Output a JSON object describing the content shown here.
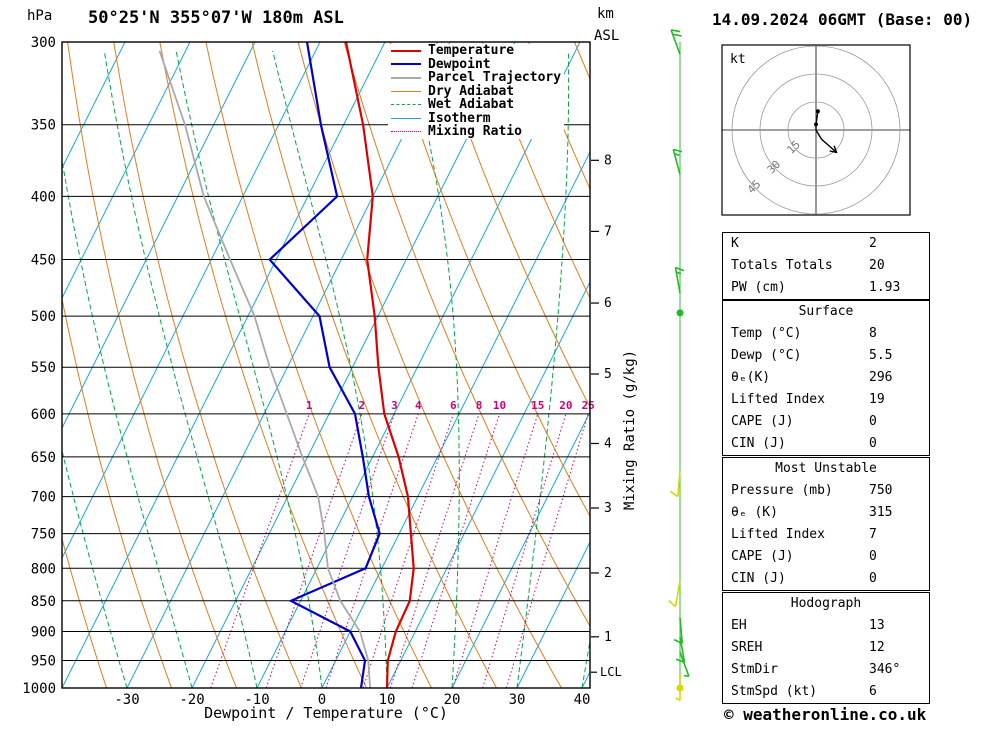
{
  "header": {
    "pressure_unit": "hPa",
    "station": "50°25'N 355°07'W 180m ASL",
    "altitude_unit_line1": "km",
    "altitude_unit_line2": "ASL",
    "datetime": "14.09.2024 06GMT (Base: 00)"
  },
  "legend": {
    "items": [
      {
        "label": "Temperature",
        "color": "#dd0000",
        "dash": "solid",
        "width": 2
      },
      {
        "label": "Dewpoint",
        "color": "#0000cc",
        "dash": "solid",
        "width": 2
      },
      {
        "label": "Parcel Trajectory",
        "color": "#aaaaaa",
        "dash": "solid",
        "width": 2
      },
      {
        "label": "Dry Adiabat",
        "color": "#e07d1e",
        "dash": "solid",
        "width": 1
      },
      {
        "label": "Wet Adiabat",
        "color": "#00a844",
        "dash": "dashed",
        "width": 1
      },
      {
        "label": "Isotherm",
        "color": "#18a8d8",
        "dash": "solid",
        "width": 1
      },
      {
        "label": "Mixing Ratio",
        "color": "#cc0080",
        "dash": "dotted",
        "width": 1
      }
    ]
  },
  "axes": {
    "pressure_ticks": [
      300,
      350,
      400,
      450,
      500,
      550,
      600,
      650,
      700,
      750,
      800,
      850,
      900,
      950,
      1000
    ],
    "temp_ticks": [
      -30,
      -20,
      -10,
      0,
      10,
      20,
      30,
      40
    ],
    "xlabel": "Dewpoint / Temperature (°C)",
    "mixing_ratio_axis_label": "Mixing Ratio (g/kg)",
    "km_ticks": [
      {
        "km": 8,
        "p": 374
      },
      {
        "km": 7,
        "p": 427
      },
      {
        "km": 6,
        "p": 488
      },
      {
        "km": 5,
        "p": 557
      },
      {
        "km": 4,
        "p": 634
      },
      {
        "km": 3,
        "p": 715
      },
      {
        "km": 2,
        "p": 807
      },
      {
        "km": 1,
        "p": 909
      }
    ],
    "lcl": {
      "label": "LCL",
      "p": 971
    }
  },
  "chart_data": {
    "type": "line",
    "title": "Skew-T log-P sounding 50°25'N 355°07'W 180m ASL 14.09.2024 06GMT",
    "pressure_range": [
      300,
      1000
    ],
    "surface_temp_axis_range": [
      -40,
      40
    ],
    "mixing_ratio_lines": [
      1,
      2,
      3,
      4,
      6,
      8,
      10,
      15,
      20,
      25
    ],
    "series": [
      {
        "name": "Temperature",
        "color": "#dd0000",
        "points": [
          [
            300,
            -46
          ],
          [
            350,
            -37
          ],
          [
            400,
            -30
          ],
          [
            450,
            -26
          ],
          [
            500,
            -20.5
          ],
          [
            550,
            -16
          ],
          [
            600,
            -11.5
          ],
          [
            650,
            -6
          ],
          [
            700,
            -1.5
          ],
          [
            750,
            1.8
          ],
          [
            800,
            4.9
          ],
          [
            850,
            6.8
          ],
          [
            900,
            7
          ],
          [
            950,
            8
          ],
          [
            1000,
            10
          ]
        ]
      },
      {
        "name": "Dewpoint",
        "color": "#0000cc",
        "points": [
          [
            300,
            -52
          ],
          [
            350,
            -43.5
          ],
          [
            400,
            -35.5
          ],
          [
            450,
            -41
          ],
          [
            500,
            -29
          ],
          [
            550,
            -23.5
          ],
          [
            600,
            -16
          ],
          [
            650,
            -11.5
          ],
          [
            700,
            -7.5
          ],
          [
            750,
            -3
          ],
          [
            800,
            -2.5
          ],
          [
            850,
            -11.5
          ],
          [
            900,
            0
          ],
          [
            950,
            4.5
          ],
          [
            1000,
            6
          ]
        ]
      },
      {
        "name": "Parcel Trajectory",
        "color": "#aaaaaa",
        "points": [
          [
            305,
            -74
          ],
          [
            350,
            -64.4
          ],
          [
            400,
            -56
          ],
          [
            450,
            -47.1
          ],
          [
            500,
            -39
          ],
          [
            550,
            -32.7
          ],
          [
            600,
            -26.5
          ],
          [
            650,
            -20.8
          ],
          [
            700,
            -15.3
          ],
          [
            750,
            -11.5
          ],
          [
            800,
            -8.3
          ],
          [
            850,
            -3.9
          ],
          [
            900,
            1.5
          ],
          [
            950,
            5
          ],
          [
            1000,
            7.4
          ]
        ]
      }
    ],
    "wind_barbs": [
      {
        "p": 307,
        "color": "#22bb22",
        "dir": 340,
        "speed": 20
      },
      {
        "p": 384,
        "color": "#22bb22",
        "dir": 345,
        "speed": 15
      },
      {
        "p": 479,
        "color": "#22bb22",
        "dir": 350,
        "speed": 15
      },
      {
        "p": 667,
        "color": "#d8d800",
        "dir": 185,
        "speed": 10
      },
      {
        "p": 819,
        "color": "#d8d800",
        "dir": 190,
        "speed": 10
      },
      {
        "p": 877,
        "color": "#22bb22",
        "dir": 175,
        "speed": 10
      },
      {
        "p": 909,
        "color": "#22bb22",
        "dir": 170,
        "speed": 10
      },
      {
        "p": 935,
        "color": "#22bb22",
        "dir": 160,
        "speed": 5
      },
      {
        "p": 975,
        "color": "#d8d800",
        "dir": 180,
        "speed": 5
      }
    ],
    "station_dots": [
      {
        "p": 497,
        "color": "#22bb22"
      },
      {
        "p": 1000,
        "color": "#d8d800"
      }
    ]
  },
  "hodograph": {
    "unit_label": "kt",
    "rings": [
      15,
      30,
      45
    ],
    "trace_kt": [
      [
        1,
        10
      ],
      [
        0,
        3
      ],
      [
        0,
        0
      ],
      [
        3,
        -5
      ],
      [
        11,
        -12
      ]
    ],
    "dots_kt": [
      [
        1,
        10
      ],
      [
        0,
        3
      ]
    ]
  },
  "tables": [
    {
      "rows": [
        [
          "K",
          "2"
        ],
        [
          "Totals Totals",
          "20"
        ],
        [
          "PW (cm)",
          "1.93"
        ]
      ]
    },
    {
      "title": "Surface",
      "rows": [
        [
          "Temp (°C)",
          "8"
        ],
        [
          "Dewp (°C)",
          "5.5"
        ],
        [
          "θₑ(K)",
          "296"
        ],
        [
          "Lifted Index",
          "19"
        ],
        [
          "CAPE (J)",
          "0"
        ],
        [
          "CIN (J)",
          "0"
        ]
      ]
    },
    {
      "title": "Most Unstable",
      "rows": [
        [
          "Pressure (mb)",
          "750"
        ],
        [
          "θₑ (K)",
          "315"
        ],
        [
          "Lifted Index",
          "7"
        ],
        [
          "CAPE (J)",
          "0"
        ],
        [
          "CIN (J)",
          "0"
        ]
      ]
    },
    {
      "title": "Hodograph",
      "rows": [
        [
          "EH",
          "13"
        ],
        [
          "SREH",
          "12"
        ],
        [
          "StmDir",
          "346°"
        ],
        [
          "StmSpd (kt)",
          "6"
        ]
      ]
    }
  ],
  "footer": {
    "copyright": "© weatheronline.co.uk"
  }
}
